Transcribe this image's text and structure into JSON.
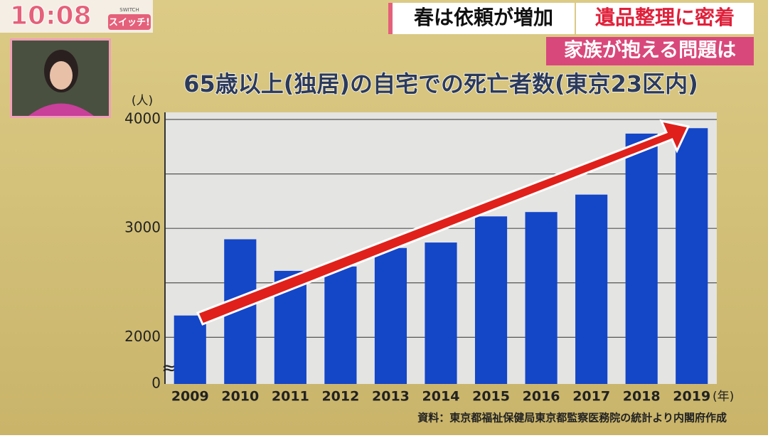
{
  "screen": {
    "clock": "10:08",
    "logo": "スイッチ!",
    "logo_sub": "SWITCH",
    "headline_1": "春は依頼が増加",
    "headline_2": "遺品整理に密着",
    "headline_3": "家族が抱える問題は"
  },
  "chart_data": {
    "type": "bar",
    "title": "65歳以上(独居)の自宅での死亡者数(東京23区内)",
    "y_unit": "(人)",
    "x_unit": "(年)",
    "source": "資料：東京都福祉保健局東京都監察医務院の統計より内閣府作成",
    "categories": [
      "2009",
      "2010",
      "2011",
      "2012",
      "2013",
      "2014",
      "2015",
      "2016",
      "2017",
      "2018",
      "2019"
    ],
    "values": [
      2200,
      2900,
      2610,
      2650,
      2820,
      2870,
      3110,
      3150,
      3310,
      3870,
      3920
    ],
    "color": "#1446c8",
    "ylim": [
      0,
      4000
    ],
    "y_break": [
      0,
      1800
    ],
    "yticks": [
      0,
      2000,
      3000,
      4000
    ],
    "minor_yticks": [
      2500,
      3500
    ],
    "grid": true
  }
}
